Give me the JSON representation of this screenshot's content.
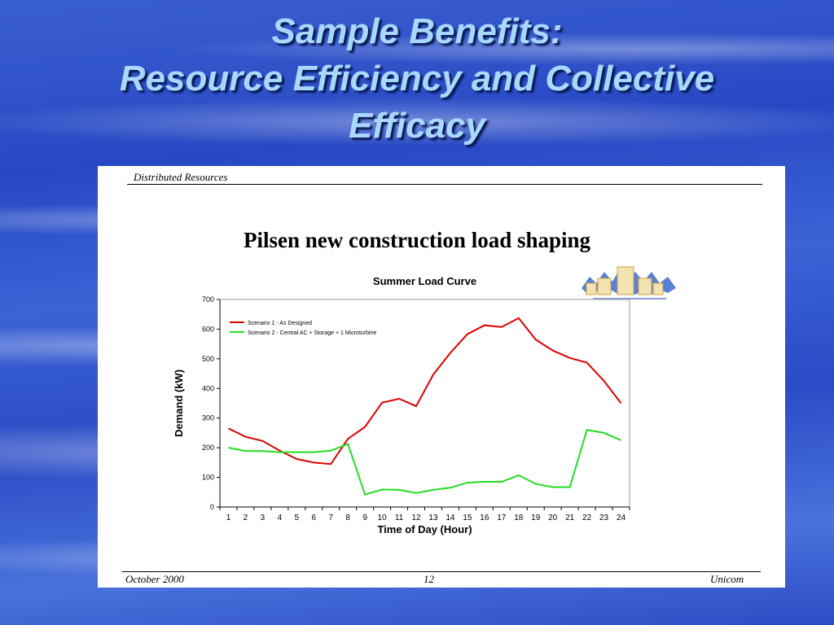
{
  "slide": {
    "title_line1": "Sample Benefits:",
    "title_line2": "Resource Efficiency and Collective",
    "title_line3": "Efficacy",
    "header": "Distributed Resources",
    "subtitle": "Pilsen new construction load shaping",
    "footer_left": "October 2000",
    "footer_center": "12",
    "footer_right": "Unicom",
    "logo_icon": "community-energy-cooperative-logo"
  },
  "colors": {
    "series1": "#dd0000",
    "series2": "#22dd22",
    "title": "#a9d8ff"
  },
  "chart_data": {
    "type": "line",
    "title": "Summer Load Curve",
    "xlabel": "Time of Day (Hour)",
    "ylabel": "Demand (kW)",
    "ylim": [
      0,
      700
    ],
    "yticks": [
      "0",
      "100",
      "200",
      "300",
      "400",
      "500",
      "600",
      "700"
    ],
    "categories": [
      "1",
      "2",
      "3",
      "4",
      "5",
      "6",
      "7",
      "8",
      "9",
      "10",
      "11",
      "12",
      "13",
      "14",
      "15",
      "16",
      "17",
      "18",
      "19",
      "20",
      "21",
      "22",
      "23",
      "24"
    ],
    "legend_position": "top-left",
    "series": [
      {
        "name": "Scenario 1 - As Designed",
        "values": [
          265,
          237,
          223,
          190,
          162,
          150,
          145,
          230,
          270,
          352,
          365,
          340,
          447,
          520,
          583,
          613,
          607,
          637,
          565,
          528,
          503,
          487,
          425,
          350
        ]
      },
      {
        "name": "Scenario 2 - Central AC + Storage + 1 Microturbine",
        "values": [
          200,
          189,
          189,
          185,
          185,
          185,
          190,
          213,
          42,
          59,
          58,
          47,
          58,
          65,
          82,
          85,
          85,
          107,
          78,
          67,
          67,
          260,
          250,
          225
        ]
      }
    ]
  }
}
